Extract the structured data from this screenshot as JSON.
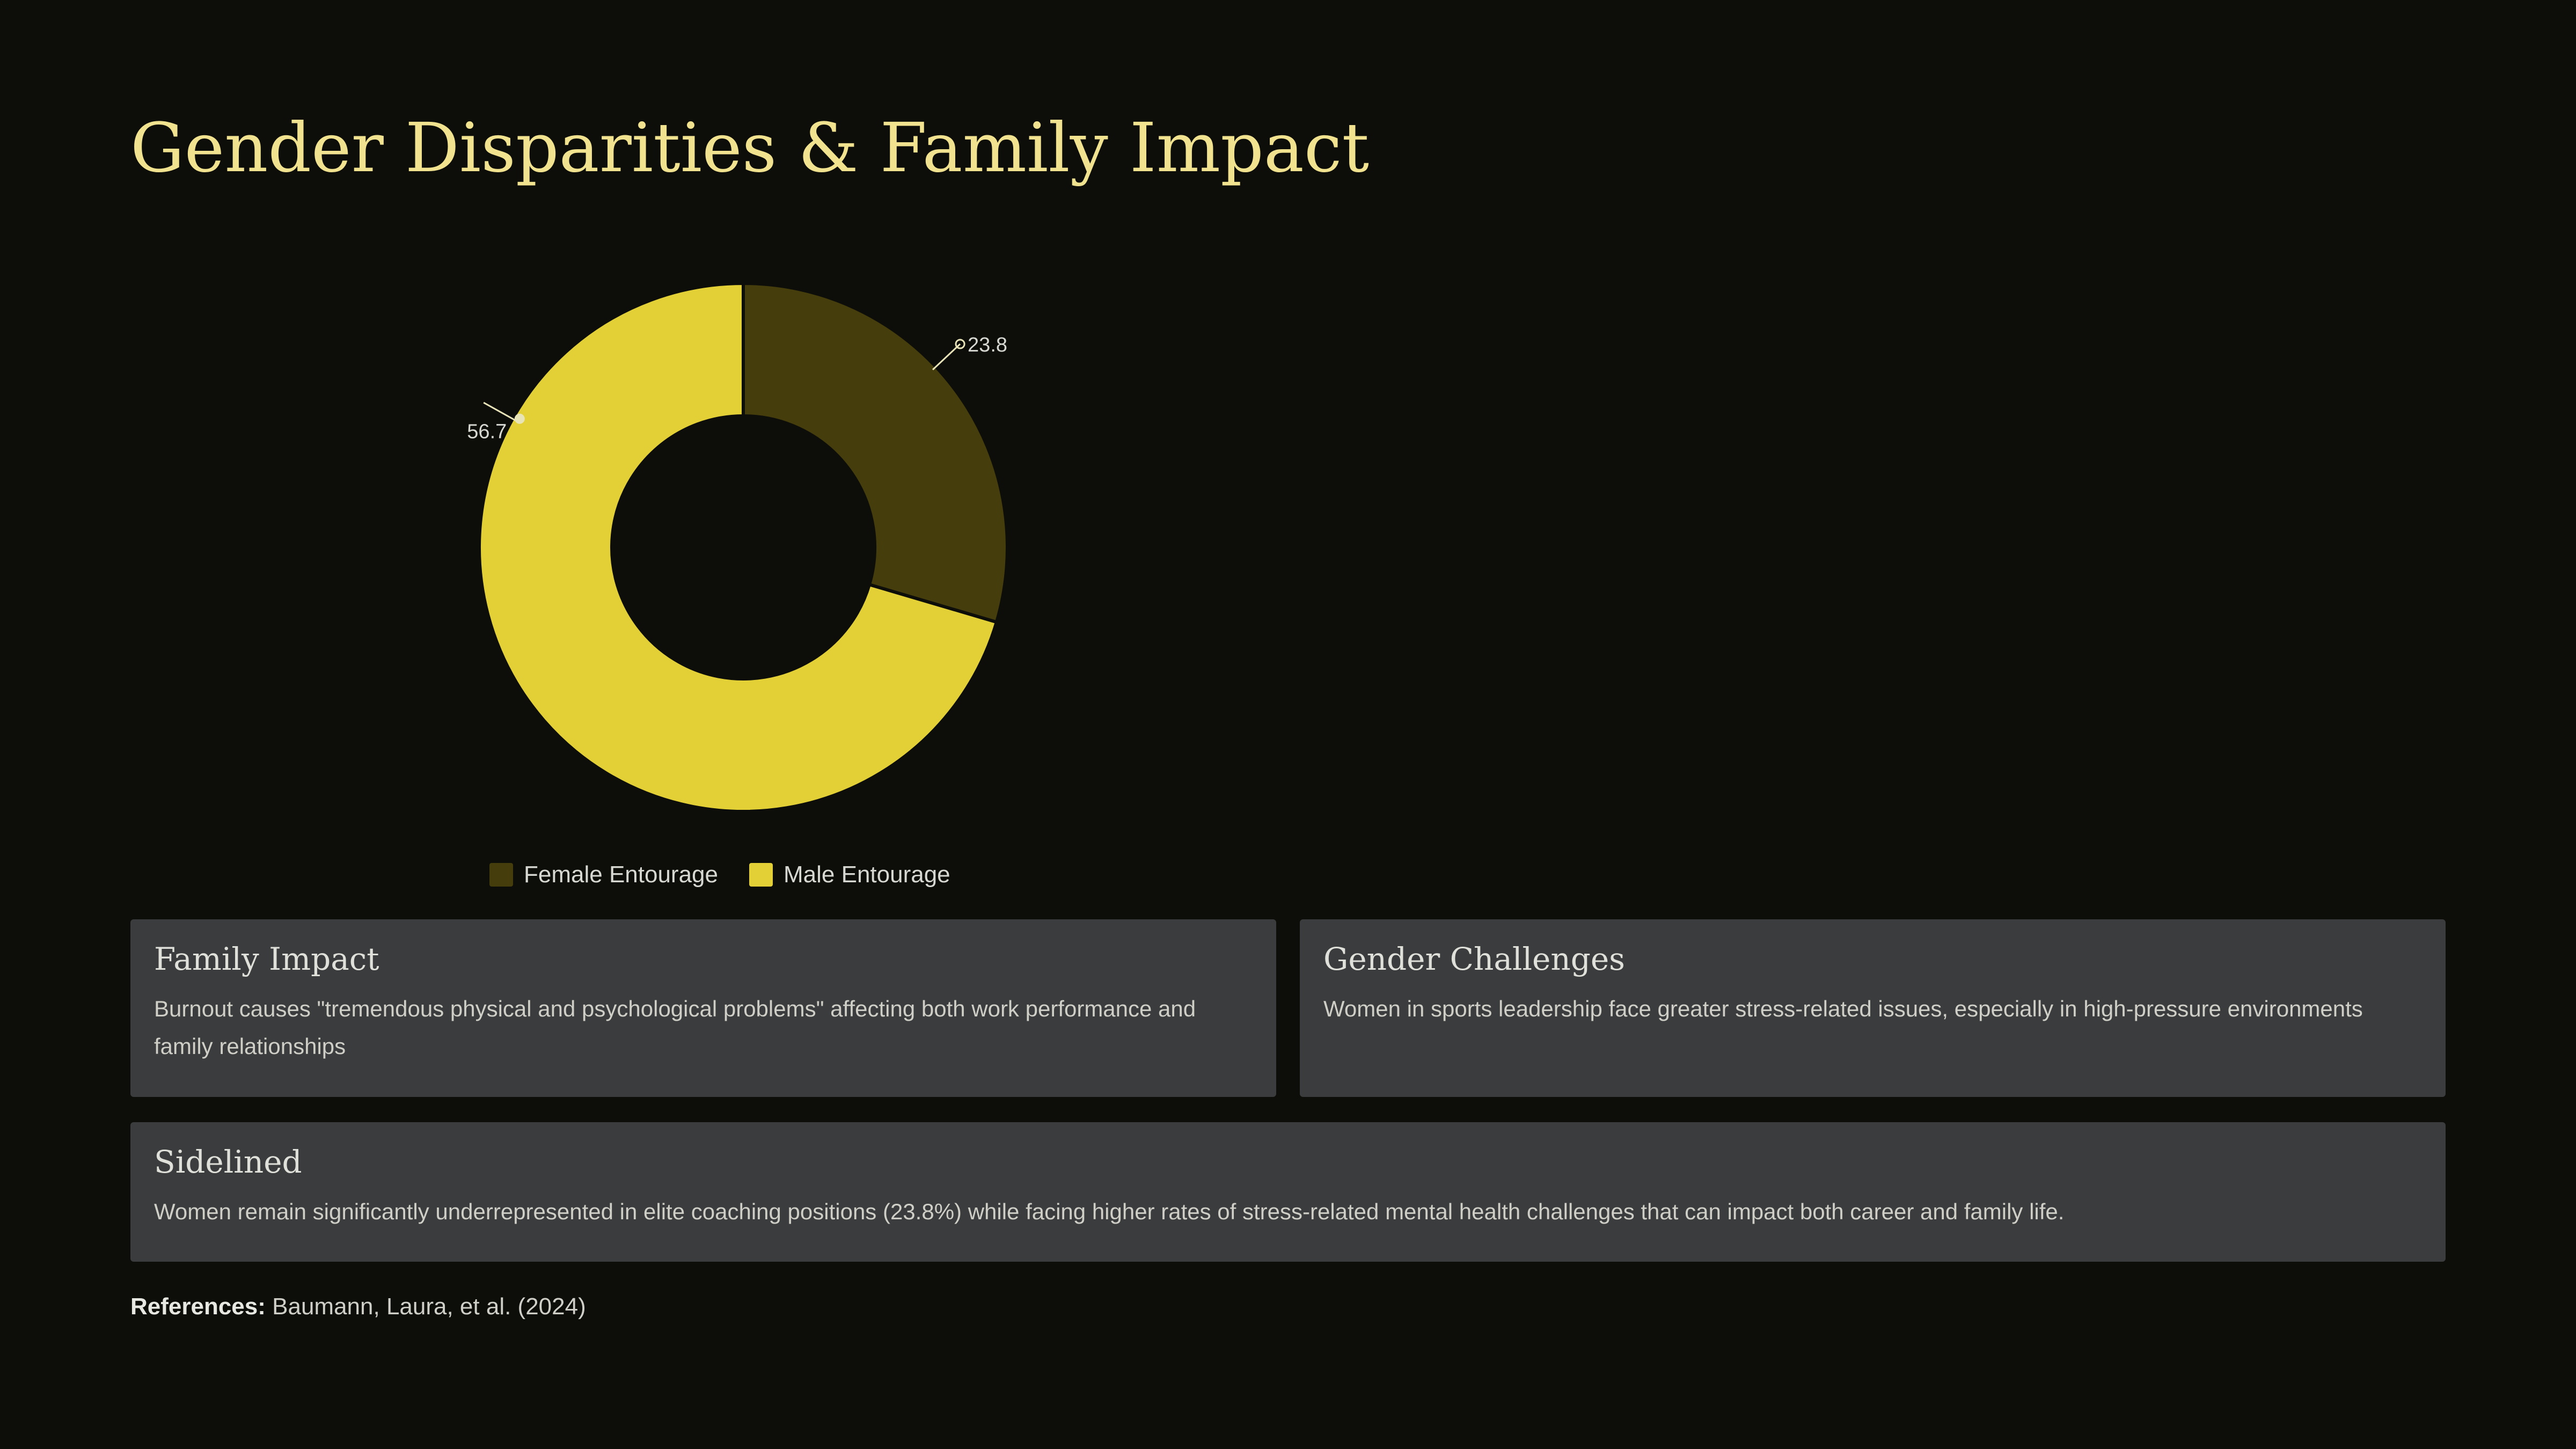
{
  "title": "Gender Disparities & Family Impact",
  "colors": {
    "background": "#0d0e0a",
    "title": "#f1e28f",
    "female": "#453d0b",
    "male": "#e2d036",
    "card": "#3b3c3d"
  },
  "chart_data": {
    "type": "pie",
    "variant": "donut",
    "categories": [
      "Female Entourage",
      "Male Entourage"
    ],
    "values": [
      23.8,
      56.7
    ],
    "value_labels": [
      "23.8",
      "56.7"
    ],
    "colors": [
      "#453d0b",
      "#e2d036"
    ],
    "legend": "bottom",
    "title": ""
  },
  "legend": {
    "female_label": "Female Entourage",
    "male_label": "Male Entourage"
  },
  "cards": {
    "family_impact": {
      "title": "Family Impact",
      "body": "Burnout causes \"tremendous physical and psychological problems\" affecting both work performance and family relationships"
    },
    "gender_challenges": {
      "title": "Gender Challenges",
      "body": "Women in sports leadership face greater stress-related issues, especially in high-pressure environments"
    },
    "sidelined": {
      "title": "Sidelined",
      "body": "Women remain significantly underrepresented in elite coaching positions (23.8%) while facing higher rates of stress-related mental health challenges that can impact both career and family life."
    }
  },
  "references": {
    "label": "References:",
    "text": "Baumann, Laura, et al. (2024)"
  }
}
